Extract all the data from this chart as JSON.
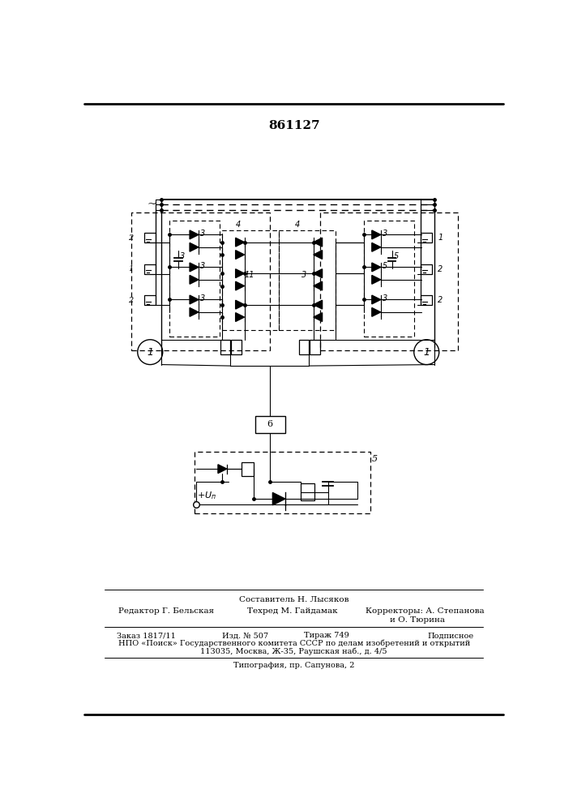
{
  "page_title": "861127",
  "bg_color": "#ffffff",
  "lc": "#000000",
  "fig_width": 7.07,
  "fig_height": 10.0,
  "dpi": 100,
  "footer_sestavitel": "Составитель Н. Лысяков",
  "footer_redaktor": "Редактор Г. Бельская",
  "footer_tehred": "Техред М. Гайдамак",
  "footer_korrektory": "Корректоры: А. Степанова",
  "footer_korrektory2": "и О. Тюрина",
  "footer_zakaz": "Заказ 1817/11",
  "footer_izd": "Изд. № 507",
  "footer_tirazh": "Тираж 749",
  "footer_podpisnoe": "Подписное",
  "footer_npo": "НПО «Поиск» Государственного комитета СССР по делам изобретений и открытий",
  "footer_addr": "113035, Москва, Ж-35, Раушская наб., д. 4/5",
  "footer_tip": "Типография, пр. Сапунова, 2"
}
